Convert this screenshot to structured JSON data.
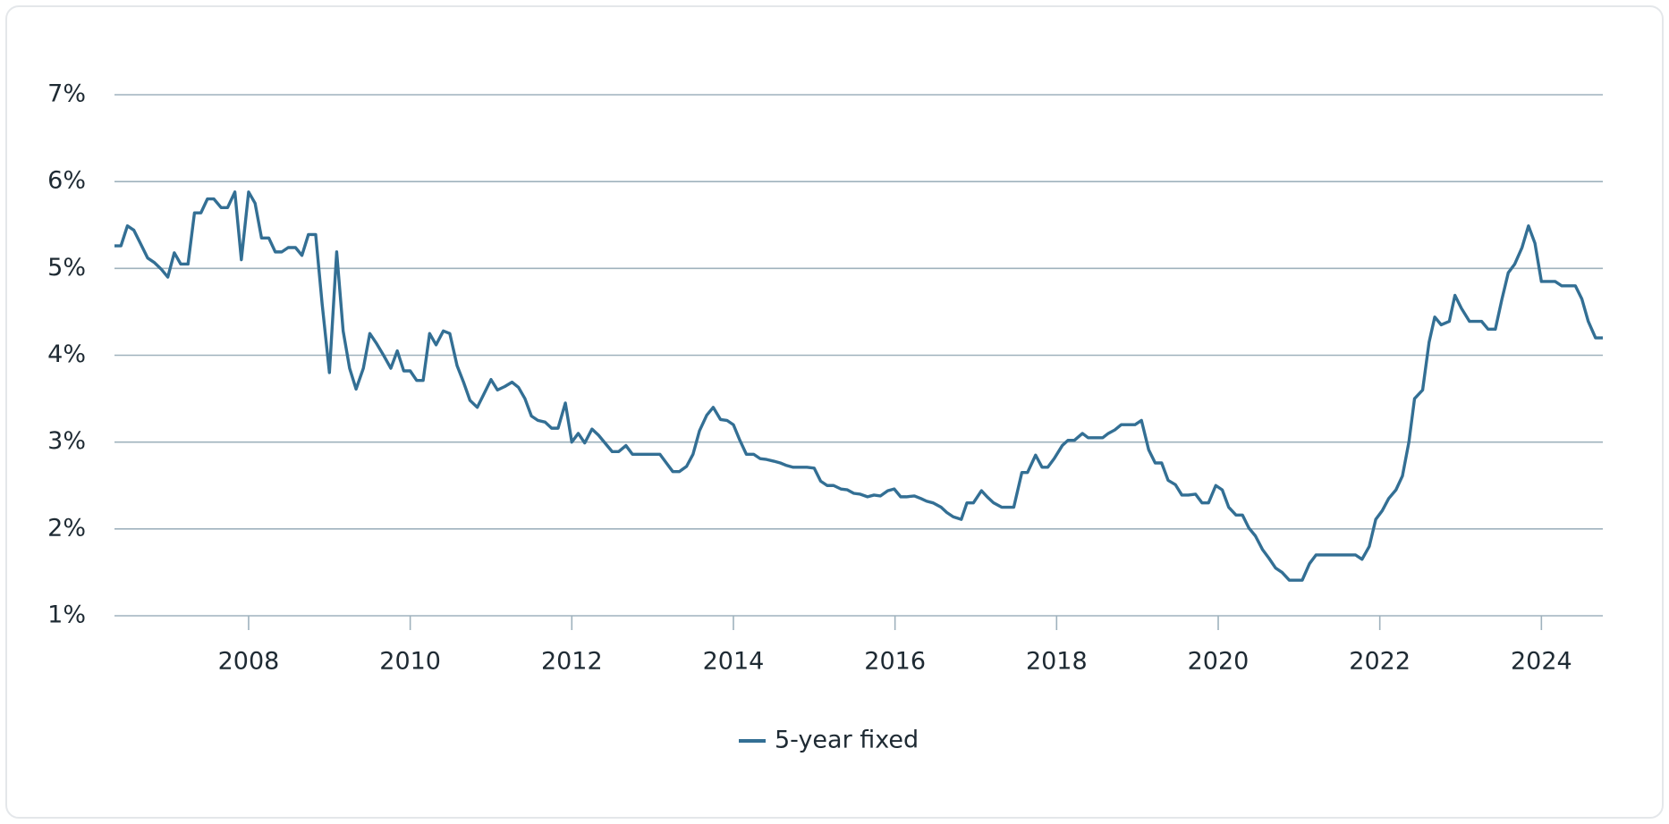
{
  "chart_data": {
    "type": "line",
    "x": [
      2006.34,
      2006.42,
      2006.5,
      2006.58,
      2006.66,
      2006.75,
      2006.83,
      2006.92,
      2007.0,
      2007.08,
      2007.16,
      2007.25,
      2007.33,
      2007.41,
      2007.49,
      2007.57,
      2007.66,
      2007.74,
      2007.83,
      2007.91,
      2008.0,
      2008.08,
      2008.16,
      2008.25,
      2008.33,
      2008.41,
      2008.49,
      2008.58,
      2008.66,
      2008.74,
      2008.83,
      2008.91,
      2009.0,
      2009.09,
      2009.17,
      2009.25,
      2009.33,
      2009.42,
      2009.5,
      2009.58,
      2009.67,
      2009.76,
      2009.84,
      2009.92,
      2010.0,
      2010.08,
      2010.16,
      2010.24,
      2010.32,
      2010.41,
      2010.49,
      2010.58,
      2010.66,
      2010.74,
      2010.83,
      2010.91,
      2011.0,
      2011.08,
      2011.17,
      2011.26,
      2011.34,
      2011.42,
      2011.5,
      2011.58,
      2011.67,
      2011.75,
      2011.83,
      2011.92,
      2012.0,
      2012.08,
      2012.16,
      2012.25,
      2012.33,
      2012.41,
      2012.5,
      2012.58,
      2012.67,
      2012.75,
      2012.83,
      2012.92,
      2013.0,
      2013.09,
      2013.17,
      2013.25,
      2013.33,
      2013.42,
      2013.5,
      2013.58,
      2013.67,
      2013.75,
      2013.84,
      2013.92,
      2014.0,
      2014.08,
      2014.16,
      2014.25,
      2014.33,
      2014.41,
      2014.5,
      2014.58,
      2014.66,
      2014.74,
      2014.83,
      2014.91,
      2015.0,
      2015.08,
      2015.16,
      2015.24,
      2015.33,
      2015.41,
      2015.49,
      2015.57,
      2015.66,
      2015.74,
      2015.82,
      2015.91,
      2015.99,
      2016.07,
      2016.14,
      2016.24,
      2016.32,
      2016.39,
      2016.47,
      2016.57,
      2016.64,
      2016.72,
      2016.82,
      2016.89,
      2016.97,
      2017.07,
      2017.14,
      2017.22,
      2017.32,
      2017.39,
      2017.47,
      2017.57,
      2017.64,
      2017.74,
      2017.82,
      2017.89,
      2017.97,
      2018.07,
      2018.14,
      2018.22,
      2018.32,
      2018.39,
      2018.47,
      2018.57,
      2018.64,
      2018.72,
      2018.8,
      2018.89,
      2018.97,
      2019.05,
      2019.14,
      2019.22,
      2019.3,
      2019.38,
      2019.47,
      2019.55,
      2019.63,
      2019.72,
      2019.8,
      2019.88,
      2019.97,
      2020.05,
      2020.13,
      2020.22,
      2020.3,
      2020.38,
      2020.46,
      2020.55,
      2020.63,
      2020.71,
      2020.79,
      2020.88,
      2020.96,
      2021.04,
      2021.13,
      2021.21,
      2021.29,
      2021.37,
      2021.45,
      2021.53,
      2021.61,
      2021.7,
      2021.78,
      2021.87,
      2021.95,
      2022.03,
      2022.11,
      2022.2,
      2022.28,
      2022.36,
      2022.43,
      2022.53,
      2022.61,
      2022.68,
      2022.76,
      2022.86,
      2022.93,
      2023.01,
      2023.11,
      2023.18,
      2023.26,
      2023.34,
      2023.43,
      2023.51,
      2023.59,
      2023.67,
      2023.76,
      2023.84,
      2023.92,
      2024.0,
      2024.09,
      2024.17,
      2024.25,
      2024.34,
      2024.42,
      2024.5,
      2024.58,
      2024.67,
      2024.76
    ],
    "series": [
      {
        "name": "5-year fixed",
        "color": "#336f94",
        "values": [
          5.26,
          5.26,
          5.49,
          5.44,
          5.29,
          5.12,
          5.07,
          4.99,
          4.9,
          5.18,
          5.05,
          5.05,
          5.64,
          5.64,
          5.8,
          5.8,
          5.7,
          5.7,
          5.88,
          5.1,
          5.88,
          5.75,
          5.35,
          5.35,
          5.19,
          5.19,
          5.24,
          5.24,
          5.15,
          5.39,
          5.39,
          4.59,
          3.8,
          5.19,
          4.28,
          3.85,
          3.61,
          3.85,
          4.25,
          4.14,
          4.0,
          3.85,
          4.05,
          3.82,
          3.82,
          3.71,
          3.71,
          4.25,
          4.12,
          4.28,
          4.25,
          3.88,
          3.69,
          3.48,
          3.4,
          3.55,
          3.72,
          3.6,
          3.64,
          3.69,
          3.63,
          3.5,
          3.3,
          3.25,
          3.23,
          3.16,
          3.16,
          3.45,
          3.0,
          3.1,
          2.99,
          3.15,
          3.08,
          2.99,
          2.89,
          2.89,
          2.96,
          2.86,
          2.86,
          2.86,
          2.86,
          2.86,
          2.76,
          2.66,
          2.66,
          2.72,
          2.86,
          3.13,
          3.31,
          3.4,
          3.26,
          3.25,
          3.2,
          3.02,
          2.86,
          2.86,
          2.81,
          2.8,
          2.78,
          2.76,
          2.73,
          2.71,
          2.71,
          2.71,
          2.7,
          2.55,
          2.5,
          2.5,
          2.46,
          2.45,
          2.41,
          2.4,
          2.37,
          2.39,
          2.38,
          2.44,
          2.46,
          2.37,
          2.37,
          2.38,
          2.35,
          2.32,
          2.3,
          2.25,
          2.19,
          2.14,
          2.11,
          2.3,
          2.3,
          2.44,
          2.37,
          2.3,
          2.25,
          2.25,
          2.25,
          2.65,
          2.65,
          2.85,
          2.71,
          2.71,
          2.81,
          2.96,
          3.02,
          3.02,
          3.1,
          3.05,
          3.05,
          3.05,
          3.1,
          3.14,
          3.2,
          3.2,
          3.2,
          3.25,
          2.91,
          2.76,
          2.76,
          2.56,
          2.51,
          2.39,
          2.39,
          2.4,
          2.3,
          2.3,
          2.5,
          2.45,
          2.25,
          2.16,
          2.16,
          2.01,
          1.92,
          1.76,
          1.66,
          1.55,
          1.5,
          1.41,
          1.41,
          1.41,
          1.6,
          1.7,
          1.7,
          1.7,
          1.7,
          1.7,
          1.7,
          1.7,
          1.65,
          1.8,
          2.11,
          2.21,
          2.35,
          2.45,
          2.61,
          3.0,
          3.5,
          3.6,
          4.15,
          4.44,
          4.35,
          4.39,
          4.69,
          4.54,
          4.39,
          4.39,
          4.39,
          4.3,
          4.3,
          4.64,
          4.95,
          5.05,
          5.24,
          5.49,
          5.29,
          4.85,
          4.85,
          4.85,
          4.8,
          4.8,
          4.8,
          4.65,
          4.39,
          4.2,
          4.2
        ]
      }
    ],
    "xlim": [
      2006.34,
      2024.76
    ],
    "xticks": [
      2008,
      2010,
      2012,
      2014,
      2016,
      2018,
      2020,
      2022,
      2024
    ],
    "ylim": [
      1,
      7
    ],
    "yticks": [
      {
        "value": 1,
        "label": "1%"
      },
      {
        "value": 2,
        "label": "2%"
      },
      {
        "value": 3,
        "label": "3%"
      },
      {
        "value": 4,
        "label": "4%"
      },
      {
        "value": 5,
        "label": "5%"
      },
      {
        "value": 6,
        "label": "6%"
      },
      {
        "value": 7,
        "label": "7%"
      }
    ],
    "grid": true,
    "legend": "bottom"
  }
}
